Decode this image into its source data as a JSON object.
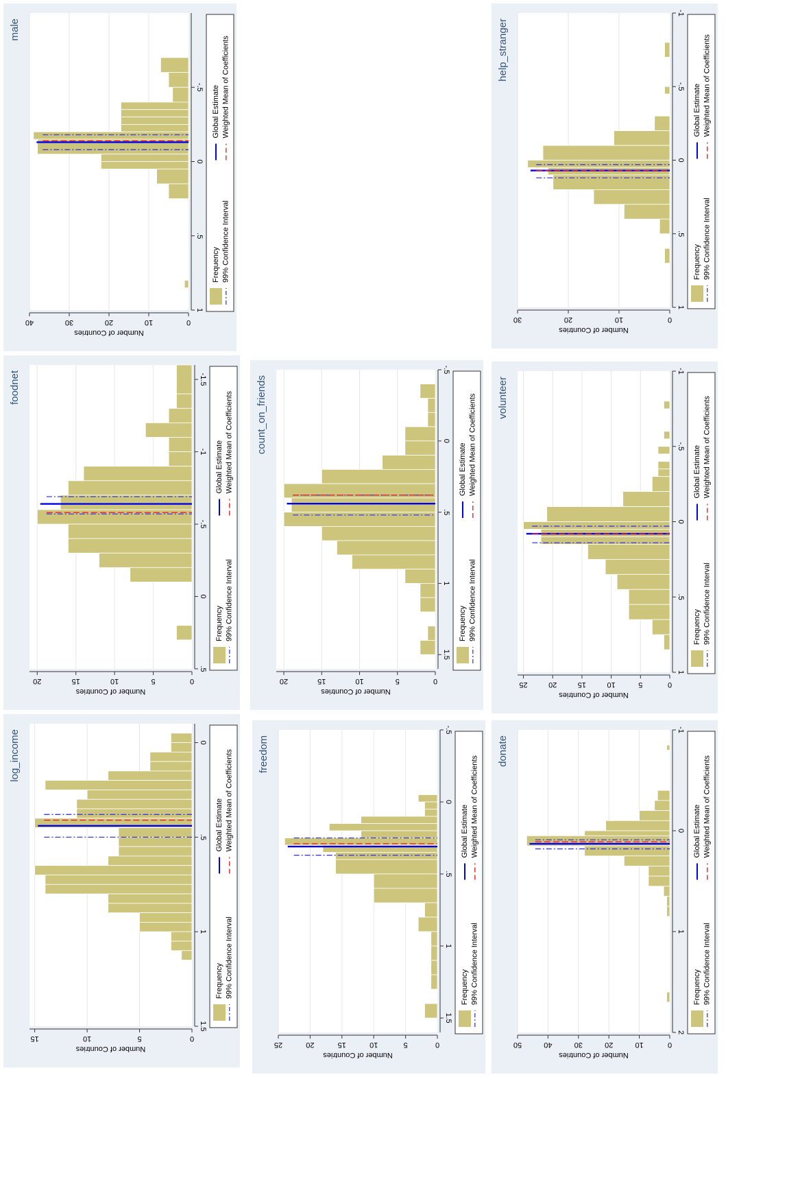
{
  "legend_labels": {
    "frequency": "Frequency",
    "ci": "99% Confidence Interval",
    "global": "Global Estimate",
    "weighted": "Weighted Mean of Coefficients"
  },
  "ytitle": "Number of Countries",
  "colors": {
    "bar": "#cdc57c",
    "bar_edge": "#ffffff",
    "global": "#0000ee",
    "ci": "#3a3adf",
    "weighted": "#ee2222",
    "title": "#35557a",
    "panel": "#eaf0f6"
  },
  "chart_data": [
    {
      "type": "bar",
      "title": "male",
      "grid": true,
      "xlim": [
        -1,
        1
      ],
      "xticks": [
        -0.5,
        0,
        0.5,
        1
      ],
      "xticklabels": [
        "-.5",
        "0",
        ".5",
        "1"
      ],
      "ylim": [
        0,
        40
      ],
      "yticks": [
        0,
        10,
        20,
        30,
        40
      ],
      "yticklabels": [
        "0",
        "10",
        "20",
        "30",
        "40"
      ],
      "bins": [
        [
          -0.7,
          -0.6,
          7
        ],
        [
          -0.6,
          -0.5,
          5
        ],
        [
          -0.5,
          -0.4,
          4
        ],
        [
          -0.4,
          -0.35,
          17
        ],
        [
          -0.35,
          -0.3,
          17
        ],
        [
          -0.3,
          -0.25,
          17
        ],
        [
          -0.25,
          -0.2,
          17
        ],
        [
          -0.2,
          -0.15,
          39
        ],
        [
          -0.15,
          -0.05,
          38
        ],
        [
          -0.05,
          0.0,
          22
        ],
        [
          0.0,
          0.05,
          22
        ],
        [
          0.05,
          0.15,
          8
        ],
        [
          0.15,
          0.25,
          5
        ],
        [
          0.8,
          0.85,
          1
        ]
      ],
      "global": -0.13,
      "weighted": -0.14,
      "ci": [
        -0.18,
        -0.08
      ]
    },
    {
      "type": "bar",
      "title": "foodnet",
      "grid": true,
      "xlim": [
        -1.6,
        0.5
      ],
      "xticks": [
        -1.5,
        -1,
        -0.5,
        0,
        0.5
      ],
      "xticklabels": [
        "-1.5",
        "-1",
        "-.5",
        "0",
        ".5"
      ],
      "ylim": [
        0,
        21
      ],
      "yticks": [
        0,
        5,
        10,
        15,
        20
      ],
      "yticklabels": [
        "0",
        "5",
        "10",
        "15",
        "20"
      ],
      "bins": [
        [
          -1.6,
          -1.4,
          2
        ],
        [
          -1.4,
          -1.3,
          2
        ],
        [
          -1.3,
          -1.2,
          3
        ],
        [
          -1.2,
          -1.1,
          6
        ],
        [
          -1.1,
          -1.0,
          3
        ],
        [
          -1.0,
          -0.9,
          3
        ],
        [
          -0.9,
          -0.8,
          14
        ],
        [
          -0.8,
          -0.7,
          16
        ],
        [
          -0.7,
          -0.6,
          17
        ],
        [
          -0.6,
          -0.5,
          20
        ],
        [
          -0.5,
          -0.4,
          16
        ],
        [
          -0.4,
          -0.3,
          16
        ],
        [
          -0.3,
          -0.2,
          12
        ],
        [
          -0.2,
          -0.1,
          8
        ],
        [
          0.2,
          0.3,
          2
        ]
      ],
      "global": -0.64,
      "weighted": -0.58,
      "ci": [
        -0.69,
        -0.57
      ]
    },
    {
      "type": "bar",
      "title": "log_income",
      "grid": true,
      "xlim": [
        -0.1,
        1.5
      ],
      "xticks": [
        0,
        0.5,
        1,
        1.5
      ],
      "xticklabels": [
        "0",
        ".5",
        "1",
        "1.5"
      ],
      "ylim": [
        0,
        15.5
      ],
      "yticks": [
        0,
        5,
        10,
        15
      ],
      "yticklabels": [
        "0",
        "5",
        "10",
        "15"
      ],
      "bins": [
        [
          -0.05,
          0.0,
          2
        ],
        [
          0.0,
          0.05,
          2
        ],
        [
          0.05,
          0.1,
          4
        ],
        [
          0.1,
          0.15,
          4
        ],
        [
          0.15,
          0.2,
          8
        ],
        [
          0.2,
          0.25,
          14
        ],
        [
          0.25,
          0.3,
          10
        ],
        [
          0.3,
          0.35,
          11
        ],
        [
          0.35,
          0.4,
          11
        ],
        [
          0.4,
          0.45,
          15
        ],
        [
          0.45,
          0.5,
          7
        ],
        [
          0.5,
          0.55,
          7
        ],
        [
          0.55,
          0.6,
          7
        ],
        [
          0.6,
          0.65,
          8
        ],
        [
          0.65,
          0.7,
          15
        ],
        [
          0.7,
          0.75,
          14
        ],
        [
          0.75,
          0.8,
          14
        ],
        [
          0.8,
          0.85,
          8
        ],
        [
          0.85,
          0.9,
          8
        ],
        [
          0.9,
          0.95,
          5
        ],
        [
          0.95,
          1.0,
          5
        ],
        [
          1.0,
          1.05,
          2
        ],
        [
          1.05,
          1.1,
          2
        ],
        [
          1.1,
          1.15,
          1
        ]
      ],
      "global": 0.44,
      "weighted": 0.41,
      "ci": [
        0.38,
        0.5
      ]
    },
    {
      "type": "bar",
      "title": "count_on_friends",
      "grid": true,
      "xlim": [
        -0.5,
        1.6
      ],
      "xticks": [
        -0.5,
        0,
        0.5,
        1,
        1.5
      ],
      "xticklabels": [
        "-.5",
        "0",
        ".5",
        "1",
        "1.5"
      ],
      "ylim": [
        0,
        21
      ],
      "yticks": [
        0,
        5,
        10,
        15,
        20
      ],
      "yticklabels": [
        "0",
        "5",
        "10",
        "15",
        "20"
      ],
      "bins": [
        [
          -0.4,
          -0.3,
          2
        ],
        [
          -0.3,
          -0.2,
          1
        ],
        [
          -0.2,
          -0.1,
          1
        ],
        [
          -0.1,
          0.0,
          4
        ],
        [
          0.0,
          0.1,
          4
        ],
        [
          0.1,
          0.2,
          7
        ],
        [
          0.2,
          0.3,
          15
        ],
        [
          0.3,
          0.4,
          20
        ],
        [
          0.4,
          0.5,
          19
        ],
        [
          0.5,
          0.6,
          20
        ],
        [
          0.6,
          0.7,
          15
        ],
        [
          0.7,
          0.8,
          13
        ],
        [
          0.8,
          0.9,
          11
        ],
        [
          0.9,
          1.0,
          4
        ],
        [
          1.0,
          1.1,
          2
        ],
        [
          1.1,
          1.2,
          2
        ],
        [
          1.3,
          1.4,
          1
        ],
        [
          1.4,
          1.5,
          2
        ]
      ],
      "global": 0.44,
      "weighted": 0.38,
      "ci": [
        0.38,
        0.52
      ]
    },
    {
      "type": "bar",
      "title": "freedom",
      "grid": true,
      "xlim": [
        -0.5,
        1.6
      ],
      "xticks": [
        -0.5,
        0,
        0.5,
        1,
        1.5
      ],
      "xticklabels": [
        "-.5",
        "0",
        ".5",
        "1",
        "1.5"
      ],
      "ylim": [
        0,
        25
      ],
      "yticks": [
        0,
        5,
        10,
        15,
        20,
        25
      ],
      "yticklabels": [
        "0",
        "5",
        "10",
        "15",
        "20",
        "25"
      ],
      "bins": [
        [
          -0.05,
          0.0,
          3
        ],
        [
          0.0,
          0.05,
          2
        ],
        [
          0.05,
          0.1,
          2
        ],
        [
          0.1,
          0.15,
          12
        ],
        [
          0.15,
          0.2,
          17
        ],
        [
          0.2,
          0.25,
          12
        ],
        [
          0.25,
          0.3,
          24
        ],
        [
          0.3,
          0.35,
          18
        ],
        [
          0.35,
          0.4,
          16
        ],
        [
          0.4,
          0.5,
          16
        ],
        [
          0.5,
          0.6,
          10
        ],
        [
          0.6,
          0.7,
          10
        ],
        [
          0.7,
          0.8,
          2
        ],
        [
          0.8,
          0.9,
          3
        ],
        [
          0.9,
          1.0,
          1
        ],
        [
          1.0,
          1.1,
          1
        ],
        [
          1.1,
          1.2,
          1
        ],
        [
          1.2,
          1.3,
          1
        ],
        [
          1.4,
          1.5,
          2
        ]
      ],
      "global": 0.31,
      "weighted": 0.29,
      "ci": [
        0.25,
        0.37
      ]
    },
    {
      "type": "bar",
      "title": "help_stranger",
      "grid": true,
      "xlim": [
        -1,
        1
      ],
      "xticks": [
        -1,
        -0.5,
        0,
        0.5,
        1
      ],
      "xticklabels": [
        "-1",
        "-.5",
        "0",
        ".5",
        "1"
      ],
      "ylim": [
        0,
        30
      ],
      "yticks": [
        0,
        10,
        20,
        30
      ],
      "yticklabels": [
        "0",
        "10",
        "20",
        "30"
      ],
      "bins": [
        [
          -0.8,
          -0.7,
          1
        ],
        [
          -0.5,
          -0.45,
          1
        ],
        [
          -0.3,
          -0.2,
          3
        ],
        [
          -0.2,
          -0.1,
          11
        ],
        [
          -0.1,
          0.0,
          25
        ],
        [
          0.0,
          0.05,
          28
        ],
        [
          0.05,
          0.1,
          24
        ],
        [
          0.1,
          0.2,
          23
        ],
        [
          0.2,
          0.3,
          15
        ],
        [
          0.3,
          0.4,
          9
        ],
        [
          0.4,
          0.5,
          2
        ],
        [
          0.6,
          0.7,
          1
        ]
      ],
      "global": 0.07,
      "weighted": 0.07,
      "ci": [
        0.03,
        0.12
      ]
    },
    {
      "type": "bar",
      "title": "volunteer",
      "grid": true,
      "xlim": [
        -1,
        1
      ],
      "xticks": [
        -1,
        -0.5,
        0,
        0.5,
        1
      ],
      "xticklabels": [
        "-1",
        "-.5",
        "0",
        ".5",
        "1"
      ],
      "ylim": [
        0,
        26
      ],
      "yticks": [
        0,
        5,
        10,
        15,
        20,
        25
      ],
      "yticklabels": [
        "0",
        "5",
        "10",
        "15",
        "20",
        "25"
      ],
      "bins": [
        [
          -0.8,
          -0.75,
          1
        ],
        [
          -0.6,
          -0.55,
          1
        ],
        [
          -0.5,
          -0.45,
          2
        ],
        [
          -0.4,
          -0.35,
          2
        ],
        [
          -0.35,
          -0.3,
          2
        ],
        [
          -0.3,
          -0.2,
          3
        ],
        [
          -0.2,
          -0.1,
          8
        ],
        [
          -0.1,
          0.0,
          21
        ],
        [
          0.0,
          0.05,
          25
        ],
        [
          0.05,
          0.1,
          22
        ],
        [
          0.1,
          0.15,
          22
        ],
        [
          0.15,
          0.25,
          14
        ],
        [
          0.25,
          0.35,
          11
        ],
        [
          0.35,
          0.45,
          9
        ],
        [
          0.45,
          0.55,
          7
        ],
        [
          0.55,
          0.65,
          7
        ],
        [
          0.65,
          0.75,
          3
        ],
        [
          0.75,
          0.85,
          1
        ]
      ],
      "global": 0.08,
      "weighted": 0.08,
      "ci": [
        0.03,
        0.14
      ]
    },
    {
      "type": "bar",
      "title": "donate",
      "grid": true,
      "xlim": [
        -1,
        2
      ],
      "xticks": [
        -1,
        0,
        1,
        2
      ],
      "xticklabels": [
        "-1",
        "0",
        "1",
        "2"
      ],
      "ylim": [
        0,
        50
      ],
      "yticks": [
        0,
        10,
        20,
        30,
        40,
        50
      ],
      "yticklabels": [
        "0",
        "10",
        "20",
        "30",
        "40",
        "50"
      ],
      "bins": [
        [
          -0.85,
          -0.8,
          1
        ],
        [
          -0.4,
          -0.3,
          4
        ],
        [
          -0.3,
          -0.2,
          5
        ],
        [
          -0.2,
          -0.1,
          10
        ],
        [
          -0.1,
          0.0,
          21
        ],
        [
          0.0,
          0.05,
          28
        ],
        [
          0.05,
          0.15,
          47
        ],
        [
          0.15,
          0.25,
          28
        ],
        [
          0.25,
          0.35,
          15
        ],
        [
          0.35,
          0.45,
          7
        ],
        [
          0.45,
          0.55,
          7
        ],
        [
          0.55,
          0.65,
          2
        ],
        [
          0.65,
          0.75,
          1
        ],
        [
          0.75,
          0.85,
          1
        ],
        [
          1.6,
          1.7,
          1
        ]
      ],
      "global": 0.13,
      "weighted": 0.11,
      "ci": [
        0.09,
        0.18
      ]
    }
  ]
}
